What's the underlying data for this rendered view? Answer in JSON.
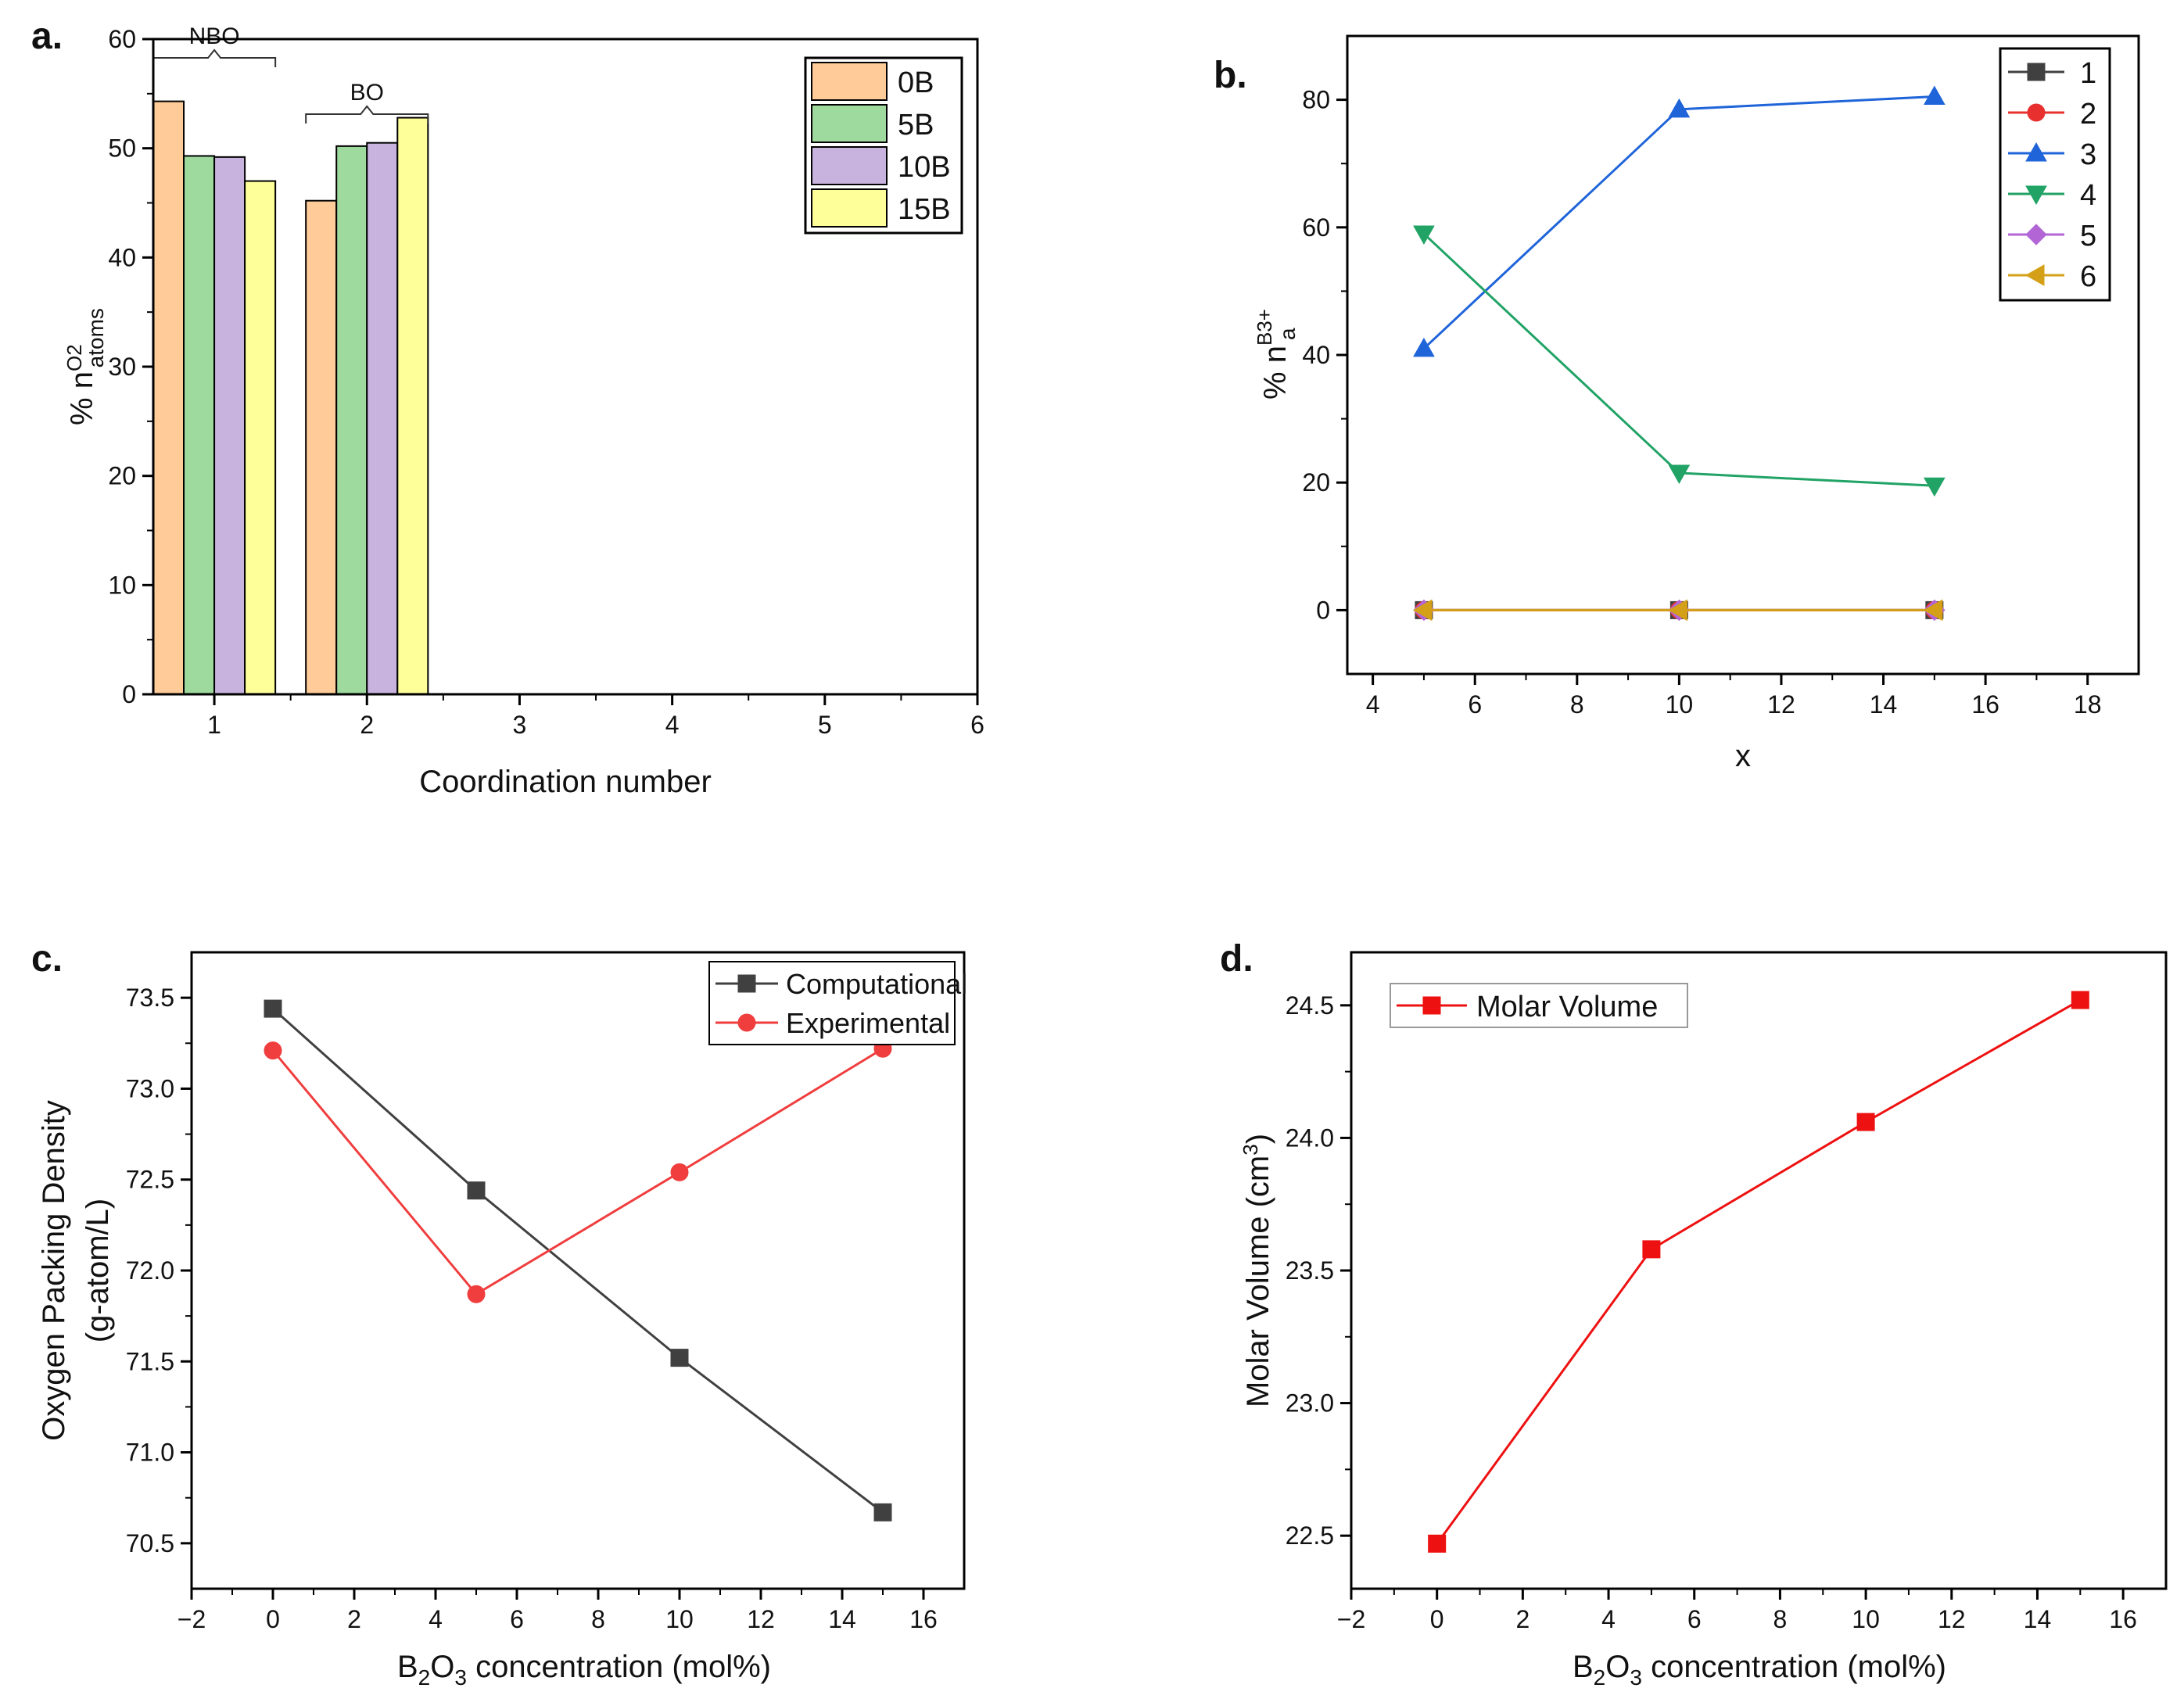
{
  "figure": {
    "panel_labels": [
      "a.",
      "b.",
      "c.",
      "d."
    ]
  },
  "chart_data": [
    {
      "id": "a",
      "type": "bar",
      "label": "a.",
      "xlabel": "Coordination number",
      "ylabel": "% n",
      "ylabel_sup": "O2",
      "ylabel_sub": "atoms",
      "xlim": [
        0.6,
        6
      ],
      "ylim": [
        0,
        60
      ],
      "xticks": [
        1,
        2,
        3,
        4,
        5,
        6
      ],
      "yticks": [
        0,
        10,
        20,
        30,
        40,
        50,
        60
      ],
      "categories": [
        1,
        2
      ],
      "series": [
        {
          "name": "0B",
          "color": "#ffcc99",
          "values": [
            54.3,
            45.2
          ]
        },
        {
          "name": "5B",
          "color": "#9ed99e",
          "values": [
            49.3,
            50.2
          ]
        },
        {
          "name": "10B",
          "color": "#c7b3dd",
          "values": [
            49.2,
            50.5
          ]
        },
        {
          "name": "15B",
          "color": "#ffff99",
          "values": [
            47.0,
            52.8
          ]
        }
      ],
      "annotations": [
        {
          "text": "NBO",
          "category": 1
        },
        {
          "text": "BO",
          "category": 2
        }
      ],
      "legend_position": "top-right"
    },
    {
      "id": "b",
      "type": "line",
      "label": "b.",
      "xlabel": "x",
      "ylabel": "% n",
      "ylabel_sup": "B3+",
      "ylabel_sub": "a",
      "xlim": [
        3.5,
        19
      ],
      "ylim": [
        -10,
        90
      ],
      "xticks": [
        4,
        6,
        8,
        10,
        12,
        14,
        16,
        18
      ],
      "yticks": [
        0,
        20,
        40,
        60,
        80
      ],
      "x": [
        5,
        10,
        15
      ],
      "series": [
        {
          "name": "1",
          "color": "#404040",
          "marker": "square",
          "values": [
            0,
            0,
            0
          ]
        },
        {
          "name": "2",
          "color": "#e8312f",
          "marker": "circle",
          "values": [
            0,
            0,
            0
          ]
        },
        {
          "name": "5",
          "color": "#b266d6",
          "marker": "diamond",
          "values": [
            0,
            0,
            0
          ]
        },
        {
          "name": "6",
          "color": "#d4a017",
          "marker": "triangle-left",
          "values": [
            0,
            0,
            0
          ]
        },
        {
          "name": "3",
          "color": "#1f64d9",
          "marker": "triangle-up",
          "values": [
            41.0,
            78.5,
            80.5
          ]
        },
        {
          "name": "4",
          "color": "#21a366",
          "marker": "triangle-down",
          "values": [
            59.0,
            21.5,
            19.5
          ]
        }
      ],
      "legend_order": [
        "1",
        "2",
        "3",
        "4",
        "5",
        "6"
      ],
      "legend_position": "top-right"
    },
    {
      "id": "c",
      "type": "line",
      "label": "c.",
      "xlabel": "B2O3 concentration (mol%)",
      "ylabel": "Oxygen Packing Density",
      "ylabel2": "(g-atom/L)",
      "xlim": [
        -2,
        17
      ],
      "ylim": [
        70.25,
        73.75
      ],
      "xticks": [
        -2,
        0,
        2,
        4,
        6,
        8,
        10,
        12,
        14,
        16
      ],
      "yticks": [
        70.5,
        71.0,
        71.5,
        72.0,
        72.5,
        73.0,
        73.5
      ],
      "series": [
        {
          "name": "Computational",
          "color": "#404040",
          "marker": "square",
          "x": [
            0,
            5,
            10,
            15
          ],
          "values": [
            73.44,
            72.44,
            71.52,
            70.67
          ]
        },
        {
          "name": "Experimental",
          "color": "#f03e3e",
          "marker": "circle",
          "x": [
            0,
            5,
            10,
            15
          ],
          "values": [
            73.21,
            71.87,
            72.54,
            73.22
          ]
        }
      ],
      "legend_position": "top-right"
    },
    {
      "id": "d",
      "type": "line",
      "label": "d.",
      "xlabel": "B2O3 concentration (mol%)",
      "ylabel": "Molar Volume (cm3)",
      "xlim": [
        -2,
        17
      ],
      "ylim": [
        22.3,
        24.7
      ],
      "xticks": [
        -2,
        0,
        2,
        4,
        6,
        8,
        10,
        12,
        14,
        16
      ],
      "yticks": [
        22.5,
        23.0,
        23.5,
        24.0,
        24.5
      ],
      "series": [
        {
          "name": "Molar Volume",
          "color": "#ee1111",
          "marker": "square",
          "x": [
            0,
            5,
            10,
            15
          ],
          "values": [
            22.47,
            23.58,
            24.06,
            24.52
          ]
        }
      ],
      "legend_position": "top-left"
    }
  ]
}
